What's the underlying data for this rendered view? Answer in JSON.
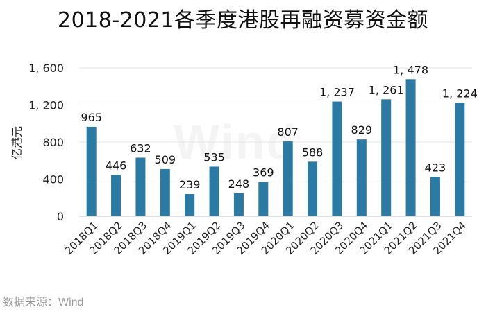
{
  "chart_data": {
    "type": "bar",
    "title": "2018-2021各季度港股再融资募资金额",
    "ylabel": "亿港元",
    "xlabel": "",
    "categories": [
      "2018Q1",
      "2018Q2",
      "2018Q3",
      "2018Q4",
      "2019Q1",
      "2019Q2",
      "2019Q3",
      "2019Q4",
      "2020Q1",
      "2020Q2",
      "2020Q3",
      "2020Q4",
      "2021Q1",
      "2021Q2",
      "2021Q3",
      "2021Q4"
    ],
    "values": [
      965,
      446,
      632,
      509,
      239,
      535,
      248,
      369,
      807,
      588,
      1237,
      829,
      1261,
      1478,
      423,
      1224
    ],
    "data_labels": [
      "965",
      "446",
      "632",
      "509",
      "239",
      "535",
      "248",
      "369",
      "807",
      "588",
      "1, 237",
      "829",
      "1, 261",
      "1, 478",
      "423",
      "1, 224"
    ],
    "yticks": [
      0,
      400,
      800,
      1200,
      1600
    ],
    "ytick_labels": [
      "0",
      "400",
      "800",
      "1, 200",
      "1, 600"
    ],
    "ylim": [
      0,
      1600
    ],
    "grid": true,
    "bar_color": "#2a7aa3",
    "source": "数据来源：Wind",
    "watermark": "Wind"
  }
}
